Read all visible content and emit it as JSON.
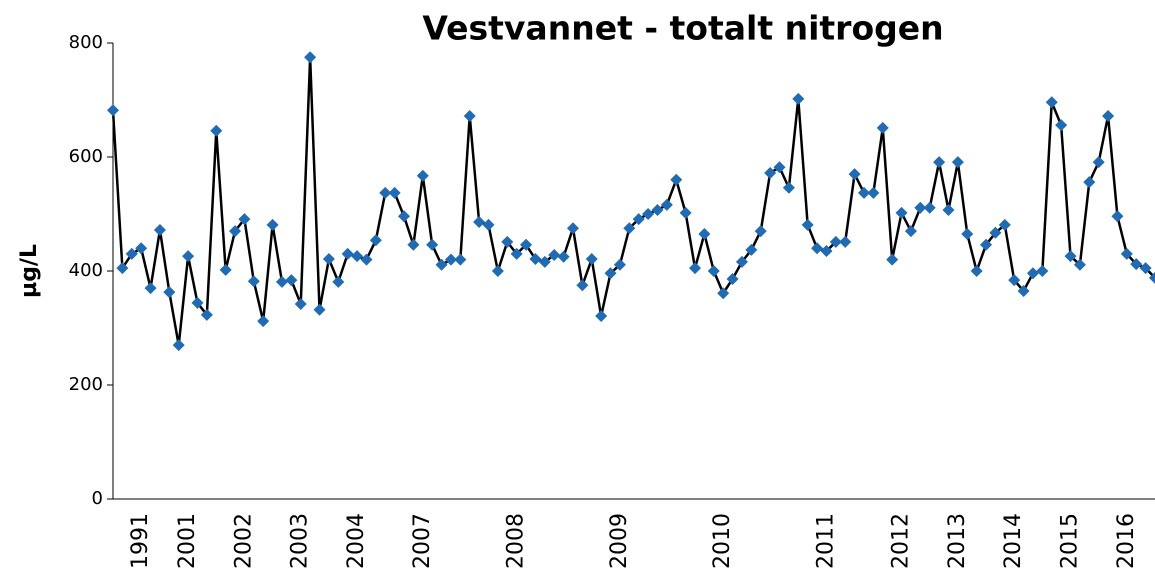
{
  "chart_data": {
    "type": "line",
    "title": "Vestvannet - totalt nitrogen",
    "ylabel": "µg/L",
    "categories": [
      null,
      null,
      null,
      "1991",
      null,
      null,
      null,
      null,
      "2001",
      null,
      null,
      null,
      null,
      null,
      "2002",
      null,
      null,
      null,
      null,
      null,
      "2003",
      null,
      null,
      null,
      null,
      null,
      "2004",
      null,
      null,
      null,
      null,
      null,
      null,
      "2007",
      null,
      null,
      null,
      null,
      null,
      null,
      null,
      null,
      null,
      "2008",
      null,
      null,
      null,
      null,
      null,
      null,
      null,
      null,
      null,
      null,
      "2009",
      null,
      null,
      null,
      null,
      null,
      null,
      null,
      null,
      null,
      null,
      "2010",
      null,
      null,
      null,
      null,
      null,
      null,
      null,
      null,
      null,
      null,
      "2011",
      null,
      null,
      null,
      null,
      null,
      null,
      null,
      "2012",
      null,
      null,
      null,
      null,
      null,
      "2013",
      null,
      null,
      null,
      null,
      null,
      "2014",
      null,
      null,
      null,
      null,
      null,
      "2015",
      null,
      null,
      null,
      null,
      null,
      "2016",
      null,
      null,
      null
    ],
    "values": [
      682,
      405,
      430,
      440,
      370,
      472,
      363,
      270,
      426,
      344,
      323,
      646,
      402,
      470,
      491,
      382,
      312,
      481,
      381,
      384,
      342,
      775,
      332,
      421,
      381,
      430,
      426,
      420,
      454,
      537,
      537,
      496,
      446,
      567,
      446,
      411,
      420,
      420,
      672,
      486,
      481,
      400,
      451,
      430,
      446,
      421,
      416,
      428,
      425,
      475,
      375,
      421,
      321,
      396,
      411,
      475,
      491,
      500,
      507,
      516,
      560,
      502,
      405,
      465,
      400,
      361,
      386,
      416,
      437,
      470,
      572,
      582,
      546,
      702,
      481,
      440,
      435,
      451,
      451,
      570,
      537,
      537,
      651,
      420,
      502,
      470,
      511,
      511,
      591,
      507,
      591,
      465,
      400,
      446,
      467,
      481,
      384,
      365,
      396,
      400,
      696,
      656,
      426,
      411,
      556,
      591,
      672,
      496,
      430,
      412,
      405,
      388
    ],
    "color": "#1f6bb5",
    "line_color": "#000000",
    "ylim": [
      0,
      800
    ],
    "yticks": [
      0,
      200,
      400,
      600,
      800
    ],
    "grid": false
  }
}
